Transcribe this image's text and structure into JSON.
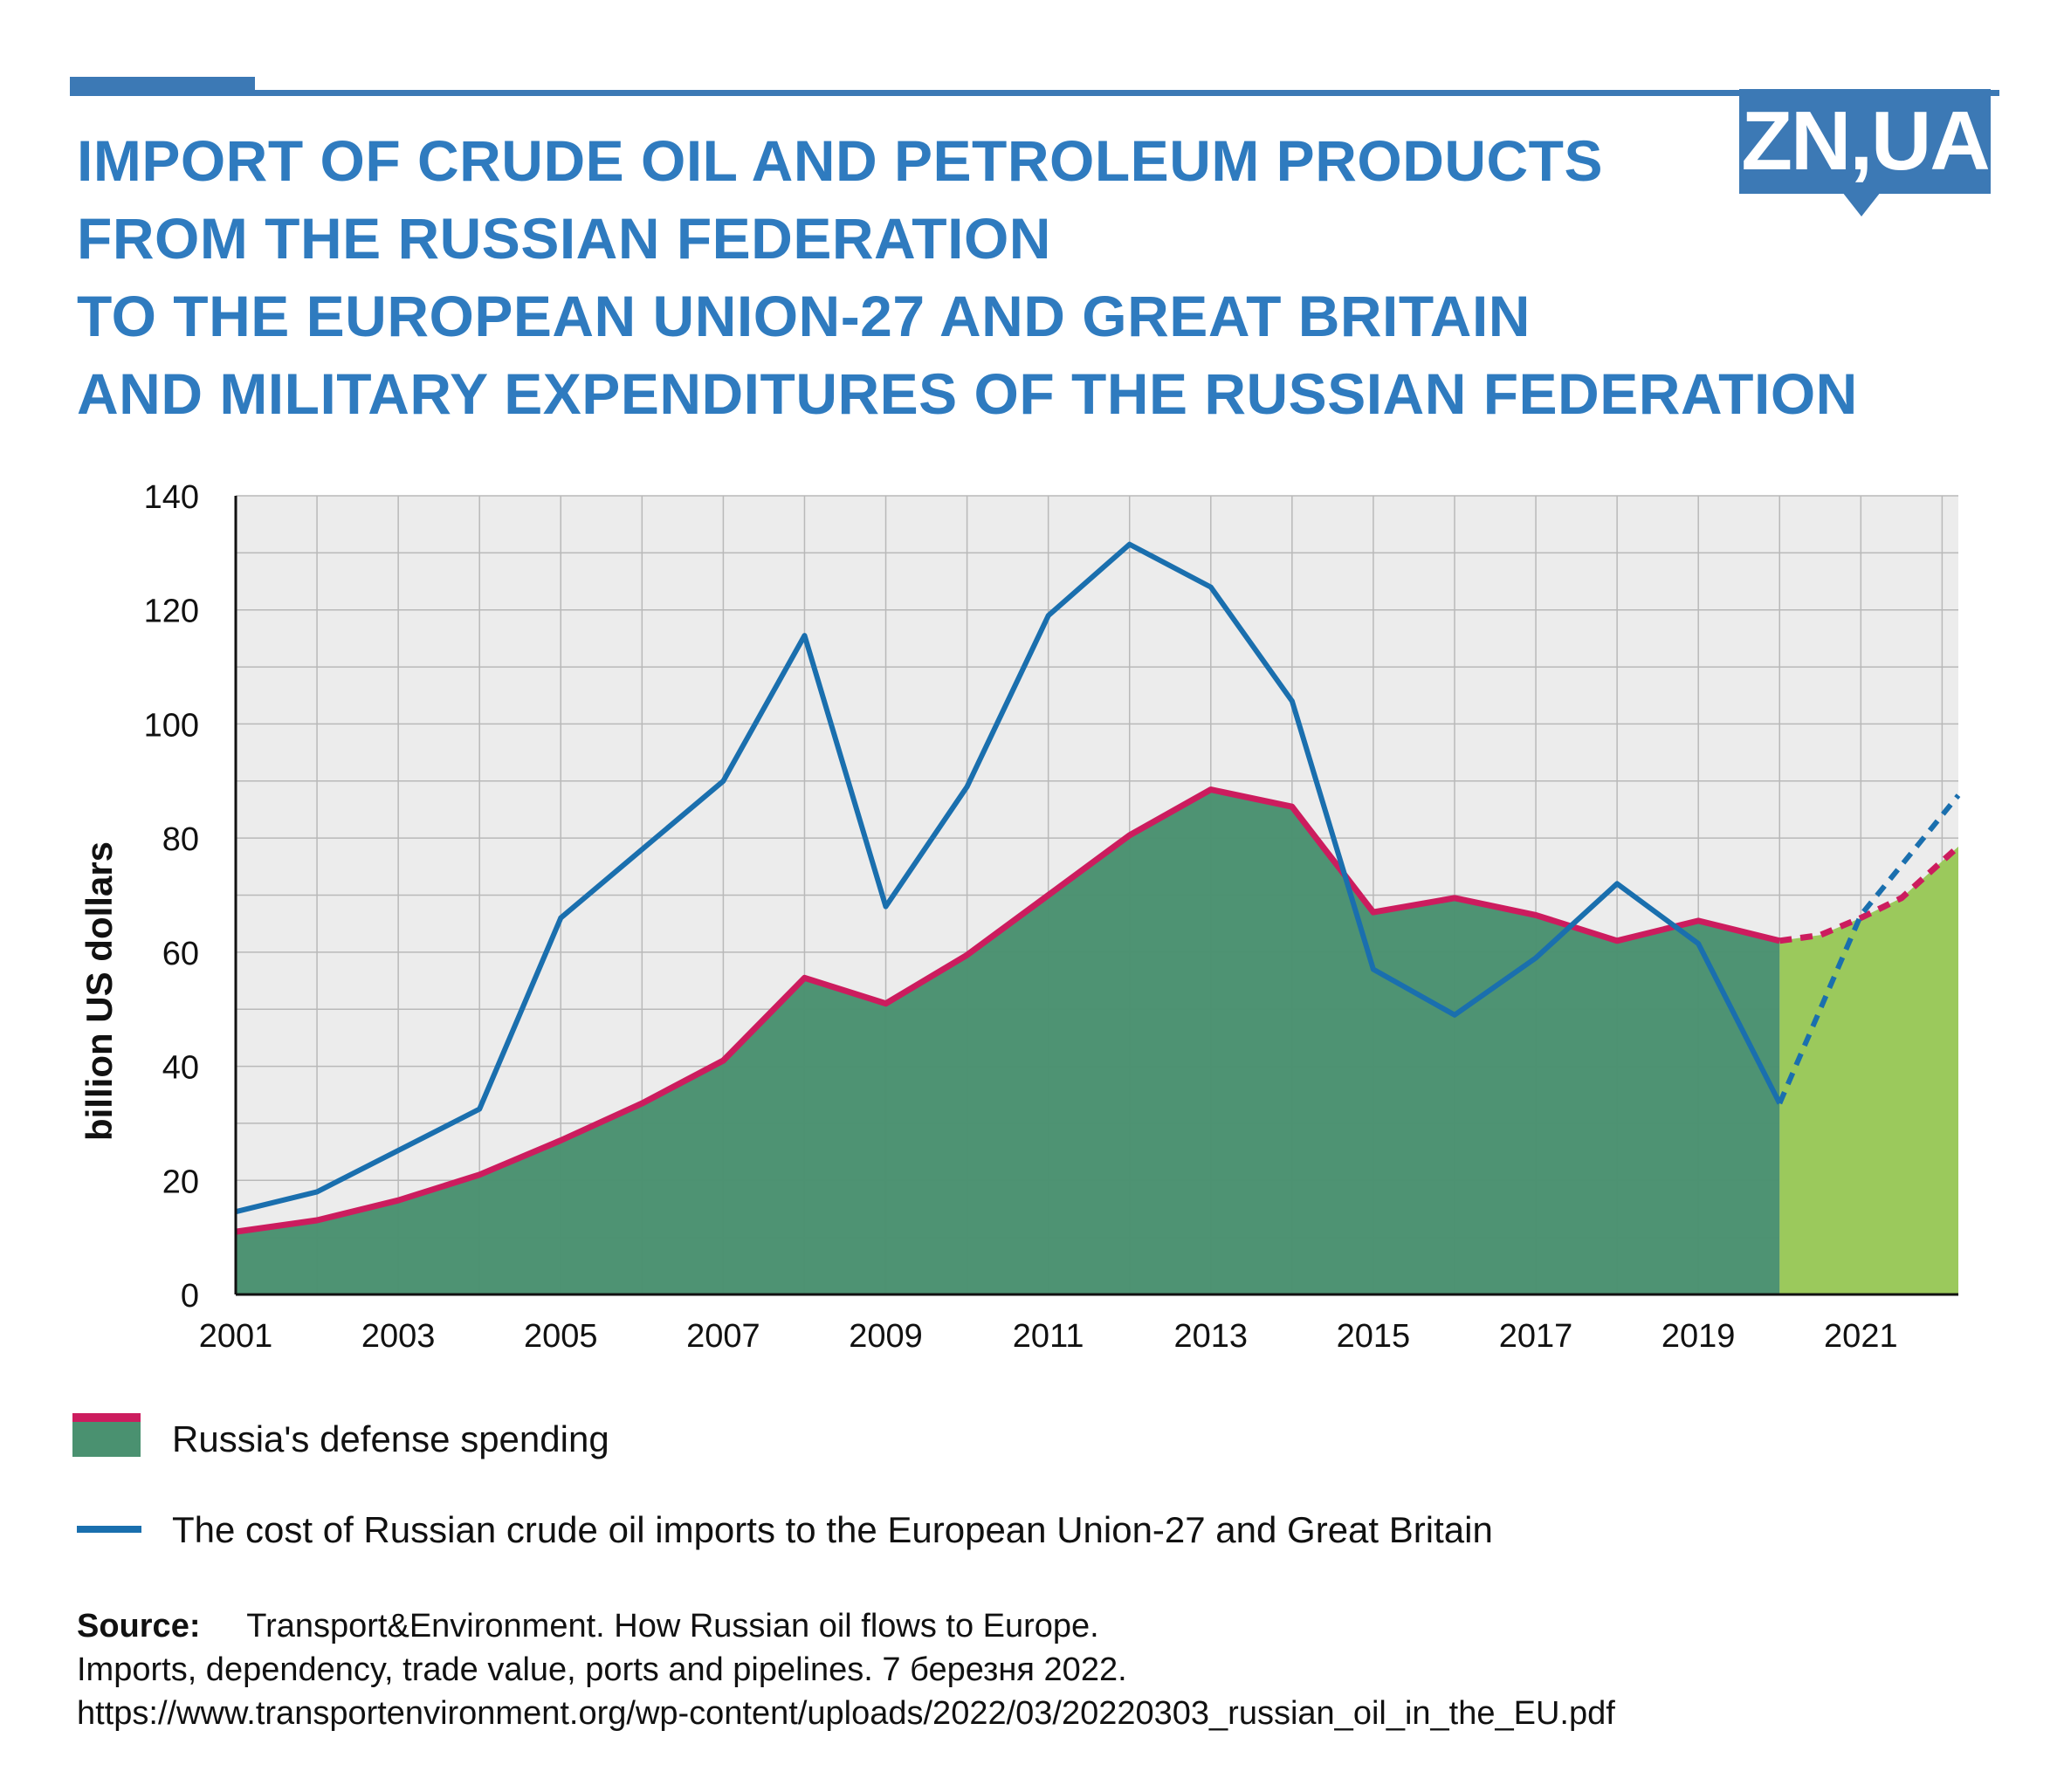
{
  "header": {
    "title_lines": [
      "IMPORT OF CRUDE OIL AND PETROLEUM PRODUCTS",
      "FROM THE RUSSIAN FEDERATION",
      "TO THE EUROPEAN UNION-27 AND GREAT BRITAIN",
      "AND MILITARY EXPENDITURES OF THE RUSSIAN FEDERATION"
    ],
    "logo": "ZN,UA"
  },
  "legend": {
    "defense": "Russia's defense spending",
    "oil": "The cost of Russian crude oil imports to the European Union-27 and Great Britain"
  },
  "source": {
    "label": "Source:",
    "line1": "Transport&Environment. How Russian oil flows to Europe.",
    "line2": "Imports, dependency, trade value, ports and pipelines. 7 березня 2022.",
    "line3": "https://www.transportenvironment.org/wp-content/uploads/2022/03/20220303_russian_oil_in_the_EU.pdf"
  },
  "colors": {
    "accent": "#3c79b5",
    "defense_line": "#cc1c5e",
    "defense_fill": "#4a9170",
    "defense_fill_projection": "#9bc95c",
    "oil_line": "#1a6fae",
    "plot_bg": "#ececec"
  },
  "chart_data": {
    "type": "line",
    "title": "Import of crude oil and petroleum products from the Russian Federation to the European Union-27 and Great Britain and military expenditures of the Russian Federation",
    "xlabel": "",
    "ylabel": "billion US dollars",
    "xlim": [
      2001,
      2022.2
    ],
    "ylim": [
      0,
      140
    ],
    "x_ticks": [
      2001,
      2003,
      2005,
      2007,
      2009,
      2011,
      2013,
      2015,
      2017,
      2019,
      2021
    ],
    "y_ticks": [
      0,
      20,
      40,
      60,
      80,
      100,
      120,
      140
    ],
    "grid": true,
    "projection_start": 2020,
    "series": [
      {
        "name": "Russia's defense spending",
        "style": "area-line",
        "x": [
          2001,
          2002,
          2003,
          2004,
          2005,
          2006,
          2007,
          2008,
          2009,
          2010,
          2011,
          2012,
          2013,
          2014,
          2015,
          2016,
          2017,
          2018,
          2019,
          2020
        ],
        "values": [
          11,
          13,
          16.5,
          21,
          27,
          33.5,
          41,
          55.5,
          51,
          59.5,
          70,
          80.5,
          88.5,
          85.5,
          67,
          69.5,
          66.5,
          62,
          65.5,
          62
        ],
        "projection_x": [
          2020,
          2020.5,
          2021,
          2021.5,
          2022.2
        ],
        "projection_values": [
          62,
          63,
          66,
          69.5,
          78.5
        ]
      },
      {
        "name": "The cost of Russian crude oil imports to the European Union-27 and Great Britain",
        "style": "line",
        "x": [
          2001,
          2002,
          2004,
          2005,
          2006,
          2007,
          2008,
          2009,
          2010,
          2011,
          2012,
          2013,
          2014,
          2015,
          2016,
          2017,
          2018,
          2019,
          2020
        ],
        "values": [
          14.5,
          18,
          32.5,
          66,
          78,
          90,
          115.5,
          68,
          89,
          119,
          131.5,
          124,
          104,
          57,
          49,
          59,
          72,
          61.5,
          33.5
        ],
        "projection_x": [
          2020,
          2021,
          2022.2
        ],
        "projection_values": [
          33.5,
          66.5,
          87.5
        ]
      }
    ]
  }
}
